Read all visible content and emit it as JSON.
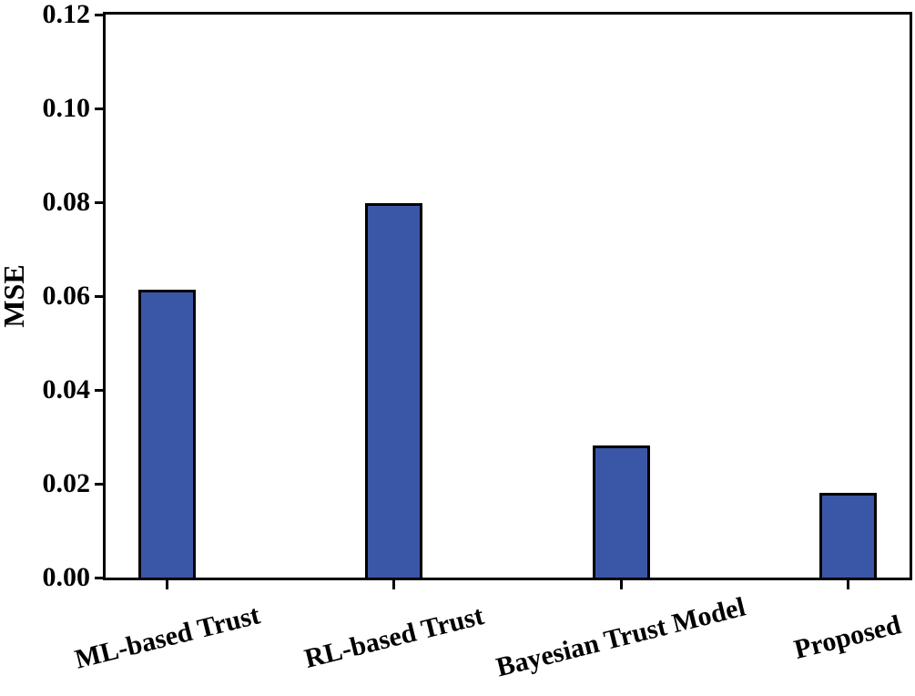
{
  "chart_data": {
    "type": "bar",
    "title": "",
    "categories": [
      "ML-based Trust",
      "RL-based Trust",
      "Bayesian Trust Model",
      "Proposed"
    ],
    "values": [
      0.0614,
      0.0798,
      0.0282,
      0.0181
    ],
    "xlabel": "",
    "ylabel": "MSE",
    "ylim": [
      0,
      0.12
    ],
    "yticks": [
      0.0,
      0.02,
      0.04,
      0.06,
      0.08,
      0.1,
      0.12
    ],
    "ytick_labels": [
      "0.00",
      "0.02",
      "0.04",
      "0.06",
      "0.08",
      "0.10",
      "0.12"
    ],
    "bar_color": "#3a57a7",
    "bar_edge_color": "#000000",
    "frame": "full-box",
    "grid": false,
    "legend": null,
    "x_label_rotation_deg": 14
  }
}
